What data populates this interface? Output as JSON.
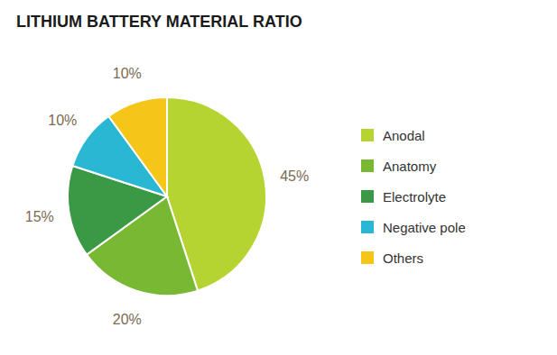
{
  "chart_data": {
    "type": "pie",
    "title": "LITHIUM BATTERY MATERIAL RATIO",
    "categories": [
      "Anodal",
      "Anatomy",
      "Electrolyte",
      "Negative pole",
      "Others"
    ],
    "values": [
      45,
      20,
      15,
      10,
      10
    ],
    "value_labels": [
      "45%",
      "20%",
      "15%",
      "10%",
      "10%"
    ],
    "colors": [
      "#b5d432",
      "#78b833",
      "#3a9944",
      "#29b7d3",
      "#f5c518"
    ],
    "data_labels": true,
    "legend": "right"
  }
}
